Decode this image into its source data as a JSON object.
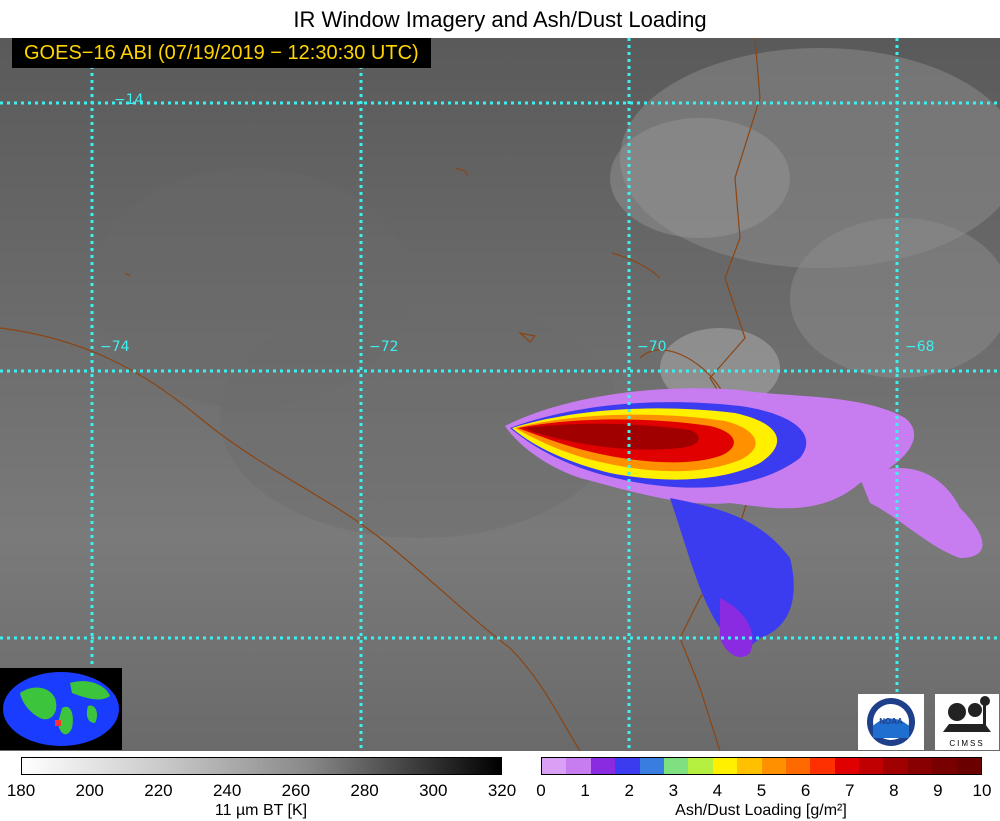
{
  "title": "IR Window Imagery and Ash/Dust Loading",
  "stamp": "GOES−16 ABI (07/19/2019 − 12:30:30 UTC)",
  "map": {
    "lat_labels": [
      "−14"
    ],
    "lon_labels": [
      "−74",
      "−72",
      "−70",
      "−68"
    ],
    "gridline_color": "#3cf0f0",
    "border_color": "#8b4513"
  },
  "logos": {
    "noaa": "NOAA",
    "cimss": "CIMSS"
  },
  "colorbar_bt": {
    "ticks": [
      "180",
      "200",
      "220",
      "240",
      "260",
      "280",
      "300",
      "320"
    ],
    "label": "11 µm BT [K]"
  },
  "colorbar_ash": {
    "ticks": [
      "0",
      "1",
      "2",
      "3",
      "4",
      "5",
      "6",
      "7",
      "8",
      "9",
      "10"
    ],
    "label": "Ash/Dust Loading [g/m²]",
    "colors": [
      "#d9a0f5",
      "#c77df0",
      "#8a2be2",
      "#3b3bf0",
      "#3a7de0",
      "#7fe07f",
      "#b5f040",
      "#fff000",
      "#ffc000",
      "#ff9000",
      "#ff6a00",
      "#ff3000",
      "#e00000",
      "#c00000",
      "#a00000",
      "#880000",
      "#780000",
      "#6a0000"
    ]
  }
}
